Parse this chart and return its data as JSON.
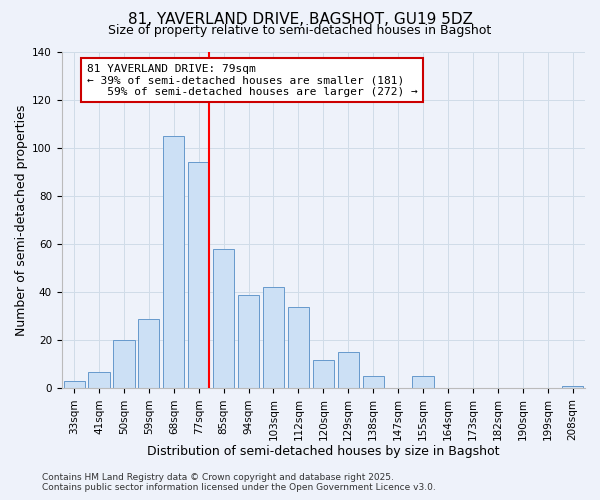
{
  "title": "81, YAVERLAND DRIVE, BAGSHOT, GU19 5DZ",
  "subtitle": "Size of property relative to semi-detached houses in Bagshot",
  "xlabel": "Distribution of semi-detached houses by size in Bagshot",
  "ylabel": "Number of semi-detached properties",
  "categories": [
    "33sqm",
    "41sqm",
    "50sqm",
    "59sqm",
    "68sqm",
    "77sqm",
    "85sqm",
    "94sqm",
    "103sqm",
    "112sqm",
    "120sqm",
    "129sqm",
    "138sqm",
    "147sqm",
    "155sqm",
    "164sqm",
    "173sqm",
    "182sqm",
    "190sqm",
    "199sqm",
    "208sqm"
  ],
  "values": [
    3,
    7,
    20,
    29,
    105,
    94,
    58,
    39,
    42,
    34,
    12,
    15,
    5,
    0,
    5,
    0,
    0,
    0,
    0,
    0,
    1
  ],
  "bar_color": "#cce0f5",
  "bar_edge_color": "#6699cc",
  "ylim": [
    0,
    140
  ],
  "yticks": [
    0,
    20,
    40,
    60,
    80,
    100,
    120,
    140
  ],
  "property_line_bar_idx": 5,
  "property_label": "81 YAVERLAND DRIVE: 79sqm",
  "smaller_pct": "39%",
  "smaller_count": 181,
  "larger_pct": "59%",
  "larger_count": 272,
  "annotation_box_facecolor": "#ffffff",
  "annotation_box_edgecolor": "#cc0000",
  "footer_line1": "Contains HM Land Registry data © Crown copyright and database right 2025.",
  "footer_line2": "Contains public sector information licensed under the Open Government Licence v3.0.",
  "title_fontsize": 11,
  "subtitle_fontsize": 9,
  "axis_label_fontsize": 9,
  "tick_fontsize": 7.5,
  "annotation_fontsize": 8,
  "footer_fontsize": 6.5,
  "grid_color": "#d0dce8",
  "background_color": "#eef2fa"
}
